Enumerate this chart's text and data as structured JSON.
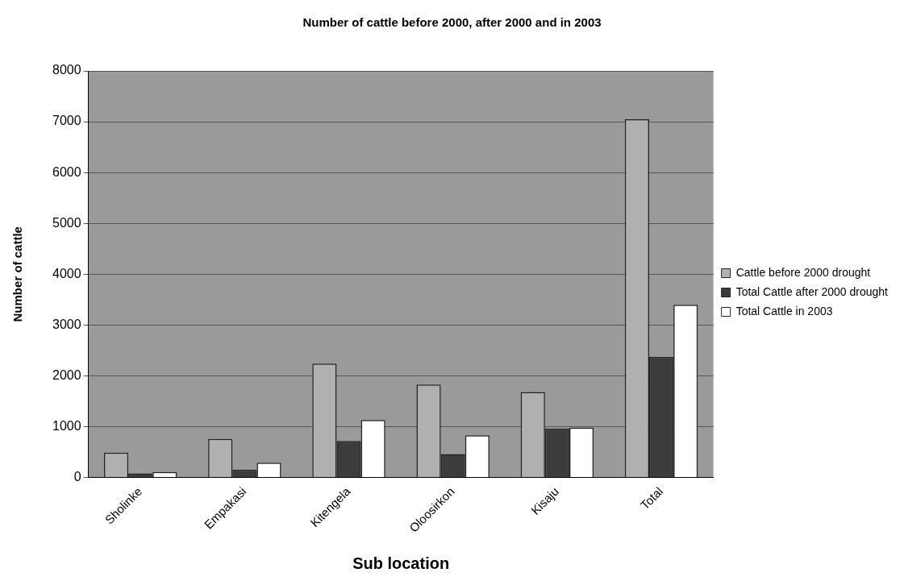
{
  "chart_data": {
    "type": "bar",
    "title": "Number of cattle before 2000, after 2000 and in 2003",
    "xlabel": "Sub location",
    "ylabel": "Number of cattle",
    "categories": [
      "Sholinke",
      "Empakasi",
      "Kitengela",
      "Oloosirkon",
      "Kisaju",
      "Total"
    ],
    "series": [
      {
        "name": "Cattle before 2000 drought",
        "color": "#b0b0b0",
        "values": [
          490,
          760,
          2240,
          1830,
          1680,
          7050
        ]
      },
      {
        "name": "Total Cattle after 2000 drought",
        "color": "#3c3c3c",
        "values": [
          80,
          150,
          720,
          460,
          960,
          2370
        ]
      },
      {
        "name": "Total Cattle in 2003",
        "color": "#ffffff",
        "values": [
          110,
          290,
          1130,
          830,
          980,
          3400
        ]
      }
    ],
    "ylim": [
      0,
      8000
    ],
    "yticks": [
      0,
      1000,
      2000,
      3000,
      4000,
      5000,
      6000,
      7000,
      8000
    ],
    "grid": "y",
    "legend": "right"
  }
}
